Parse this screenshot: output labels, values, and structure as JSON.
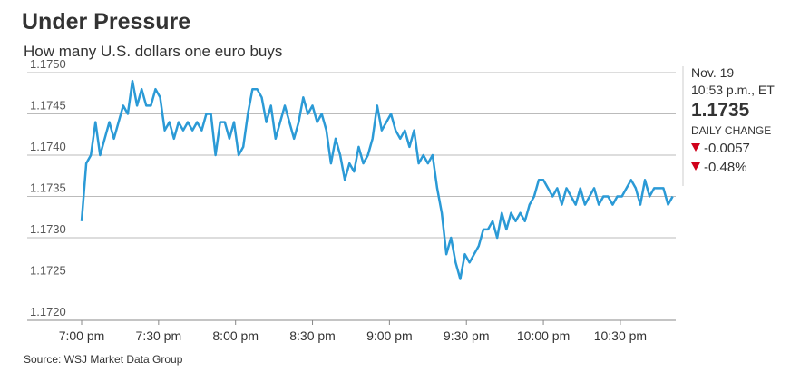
{
  "chart_data": {
    "type": "line",
    "title": "Under Pressure",
    "subtitle": "How many U.S. dollars one euro buys",
    "source": "Source: WSJ Market Data Group",
    "color": "#2b9ad6",
    "grid": true,
    "x": [
      19,
      19.03,
      19.06,
      19.09,
      19.12,
      19.15,
      19.18,
      19.21,
      19.24,
      19.27,
      19.3,
      19.33,
      19.36,
      19.39,
      19.42,
      19.45,
      19.48,
      19.51,
      19.54,
      19.57,
      19.6,
      19.63,
      19.66,
      19.69,
      19.72,
      19.75,
      19.78,
      19.81,
      19.84,
      19.87,
      19.9,
      19.93,
      19.96,
      19.99,
      20.02,
      20.05,
      20.08,
      20.11,
      20.14,
      20.17,
      20.2,
      20.23,
      20.26,
      20.29,
      20.32,
      20.35,
      20.38,
      20.41,
      20.44,
      20.47,
      20.5,
      20.53,
      20.56,
      20.59,
      20.62,
      20.65,
      20.68,
      20.71,
      20.74,
      20.77,
      20.8,
      20.83,
      20.86,
      20.89,
      20.92,
      20.95,
      20.98,
      21.01,
      21.04,
      21.07,
      21.1,
      21.13,
      21.16,
      21.19,
      21.22,
      21.25,
      21.28,
      21.31,
      21.34,
      21.37,
      21.4,
      21.43,
      21.46,
      21.49,
      21.52,
      21.55,
      21.58,
      21.61,
      21.64,
      21.67,
      21.7,
      21.73,
      21.76,
      21.79,
      21.82,
      21.85,
      21.88,
      21.91,
      21.94,
      21.97,
      22,
      22.03,
      22.06,
      22.09,
      22.12,
      22.15,
      22.18,
      22.21,
      22.24,
      22.27,
      22.3,
      22.33,
      22.36,
      22.39,
      22.42,
      22.45,
      22.48,
      22.51,
      22.54,
      22.57,
      22.6,
      22.63,
      22.66,
      22.69,
      22.72,
      22.75,
      22.78,
      22.81,
      22.84
    ],
    "values": [
      1.1732,
      1.1739,
      1.174,
      1.1744,
      1.174,
      1.1742,
      1.1744,
      1.1742,
      1.1744,
      1.1746,
      1.1745,
      1.1749,
      1.1746,
      1.1748,
      1.1746,
      1.1746,
      1.1748,
      1.1747,
      1.1743,
      1.1744,
      1.1742,
      1.1744,
      1.1743,
      1.1744,
      1.1743,
      1.1744,
      1.1743,
      1.1745,
      1.1745,
      1.174,
      1.1744,
      1.1744,
      1.1742,
      1.1744,
      1.174,
      1.1741,
      1.1745,
      1.1748,
      1.1748,
      1.1747,
      1.1744,
      1.1746,
      1.1742,
      1.1744,
      1.1746,
      1.1744,
      1.1742,
      1.1744,
      1.1747,
      1.1745,
      1.1746,
      1.1744,
      1.1745,
      1.1743,
      1.1739,
      1.1742,
      1.174,
      1.1737,
      1.1739,
      1.1738,
      1.1741,
      1.1739,
      1.174,
      1.1742,
      1.1746,
      1.1743,
      1.1744,
      1.1745,
      1.1743,
      1.1742,
      1.1743,
      1.1741,
      1.1743,
      1.1739,
      1.174,
      1.1739,
      1.174,
      1.1736,
      1.1733,
      1.1728,
      1.173,
      1.1727,
      1.1725,
      1.1728,
      1.1727,
      1.1728,
      1.1729,
      1.1731,
      1.1731,
      1.1732,
      1.173,
      1.1733,
      1.1731,
      1.1733,
      1.1732,
      1.1733,
      1.1732,
      1.1734,
      1.1735,
      1.1737,
      1.1737,
      1.1736,
      1.1735,
      1.1736,
      1.1734,
      1.1736,
      1.1735,
      1.1734,
      1.1736,
      1.1734,
      1.1735,
      1.1736,
      1.1734,
      1.1735,
      1.1735,
      1.1734,
      1.1735,
      1.1735,
      1.1736,
      1.1737,
      1.1736,
      1.1734,
      1.1737,
      1.1735,
      1.1736,
      1.1736,
      1.1736,
      1.1734,
      1.1735
    ],
    "xlim": [
      19,
      22.86
    ],
    "xticks": [
      {
        "value": 19,
        "label": "7:00 pm"
      },
      {
        "value": 19.5,
        "label": "7:30 pm"
      },
      {
        "value": 20,
        "label": "8:00 pm"
      },
      {
        "value": 20.5,
        "label": "8:30 pm"
      },
      {
        "value": 21,
        "label": "9:00 pm"
      },
      {
        "value": 21.5,
        "label": "9:30 pm"
      },
      {
        "value": 22,
        "label": "10:00 pm"
      },
      {
        "value": 22.5,
        "label": "10:30 pm"
      }
    ],
    "ylim": [
      1.172,
      1.175
    ],
    "yticks": [
      {
        "value": 1.172,
        "label": "1.1720"
      },
      1.1725,
      {
        "value": 1.173,
        "label": "1.1730"
      },
      1.1735,
      {
        "value": 1.174,
        "label": "1.1740"
      },
      1.1745,
      {
        "value": 1.175,
        "label": "1.1750"
      }
    ],
    "sidebar": {
      "date": "Nov. 19",
      "time": "10:53 p.m., ET",
      "price": "1.1735",
      "change_label": "DAILY CHANGE",
      "change": "-0.0057",
      "change_pct": "-0.48%"
    }
  }
}
